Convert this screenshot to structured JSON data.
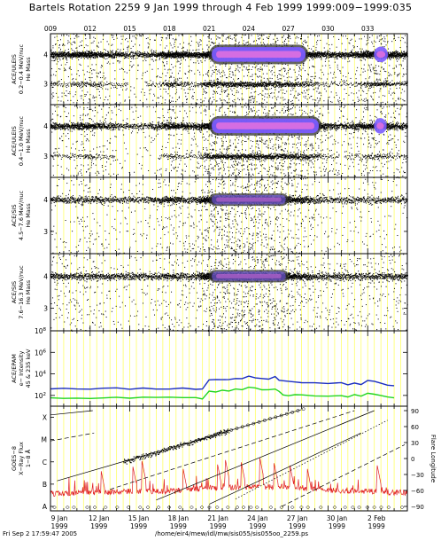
{
  "header": {
    "title": "Bartels Rotation 2259     9 Jan 1999 through 4 Feb 1999     1999:009−1999:035"
  },
  "footer": {
    "timestamp": "Fri Sep  2 17:59:47 2005",
    "path": "/home/eir4/mew/idl/mw/sis055/sis055oo_2259.ps"
  },
  "colors": {
    "low_energy_series": "#1c2fc0",
    "high_energy_series": "#22d622",
    "xray_flux": "#e02020",
    "dense_core": "#7a5cff",
    "dense_peak": "#e070e0",
    "grid": "#ffff66"
  },
  "chart_data": [
    {
      "panel": "ace-uleis-low",
      "type": "scatter",
      "ylabel": [
        "ACE/ULEIS",
        "0.2−0.4 MeV/nuc",
        "He Mass"
      ],
      "yticks": [
        "4",
        "3"
      ],
      "ylim": [
        2.3,
        4.7
      ],
      "top_axis_ticks": [
        "009",
        "012",
        "015",
        "018",
        "021",
        "024",
        "027",
        "030",
        "033"
      ],
      "dense_band": {
        "center": 4.0,
        "x_start_day": 21.0,
        "x_end_day": 28.5,
        "x_bubble_day": [
          33.6,
          34.4
        ]
      },
      "density_by_day": [
        [
          9,
          0.6
        ],
        [
          10,
          0.5
        ],
        [
          11,
          0.6
        ],
        [
          12,
          0.7
        ],
        [
          13,
          0.5
        ],
        [
          14,
          0.4
        ],
        [
          15,
          0.3
        ],
        [
          16,
          0.3
        ],
        [
          17,
          0.4
        ],
        [
          18,
          0.9
        ],
        [
          19,
          0.6
        ],
        [
          20,
          0.5
        ],
        [
          21,
          1.0
        ],
        [
          22,
          1.0
        ],
        [
          23,
          1.0
        ],
        [
          24,
          1.0
        ],
        [
          25,
          1.0
        ],
        [
          26,
          1.0
        ],
        [
          27,
          0.9
        ],
        [
          28,
          0.8
        ],
        [
          29,
          0.6
        ],
        [
          30,
          0.4
        ],
        [
          31,
          0.4
        ],
        [
          32,
          0.5
        ],
        [
          33,
          0.8
        ],
        [
          34,
          0.9
        ],
        [
          35,
          0.6
        ]
      ]
    },
    {
      "panel": "ace-uleis-high",
      "type": "scatter",
      "ylabel": [
        "ACE/ULEIS",
        "0.4−1.0 MeV/nuc",
        "He Mass"
      ],
      "yticks": [
        "4",
        "3"
      ],
      "ylim": [
        2.3,
        4.7
      ],
      "dense_band": {
        "center": 4.0,
        "x_start_day": 21.0,
        "x_end_day": 29.5,
        "x_bubble_day": [
          33.6,
          34.3
        ]
      },
      "density_by_day": [
        [
          9,
          0.4
        ],
        [
          10,
          0.4
        ],
        [
          11,
          0.5
        ],
        [
          12,
          0.6
        ],
        [
          13,
          0.4
        ],
        [
          14,
          0.3
        ],
        [
          15,
          0.2
        ],
        [
          16,
          0.2
        ],
        [
          17,
          0.3
        ],
        [
          18,
          0.6
        ],
        [
          19,
          0.5
        ],
        [
          20,
          0.4
        ],
        [
          21,
          1.0
        ],
        [
          22,
          1.0
        ],
        [
          23,
          1.0
        ],
        [
          24,
          1.0
        ],
        [
          25,
          1.0
        ],
        [
          26,
          1.0
        ],
        [
          27,
          1.0
        ],
        [
          28,
          0.9
        ],
        [
          29,
          0.8
        ],
        [
          30,
          0.4
        ],
        [
          31,
          0.3
        ],
        [
          32,
          0.4
        ],
        [
          33,
          0.6
        ],
        [
          34,
          0.7
        ],
        [
          35,
          0.4
        ]
      ]
    },
    {
      "panel": "ace-sis-low",
      "type": "scatter",
      "ylabel": [
        "ACE/SIS",
        "4.5−7.6 MeV/nuc",
        "He Mass"
      ],
      "yticks": [
        "4",
        "3"
      ],
      "ylim": [
        2.3,
        4.7
      ],
      "dense_band": {
        "center": 4.0,
        "x_start_day": 21.0,
        "x_end_day": 27.0
      },
      "density_by_day": [
        [
          9,
          0.25
        ],
        [
          10,
          0.25
        ],
        [
          11,
          0.3
        ],
        [
          12,
          0.3
        ],
        [
          13,
          0.25
        ],
        [
          14,
          0.2
        ],
        [
          15,
          0.2
        ],
        [
          16,
          0.2
        ],
        [
          17,
          0.3
        ],
        [
          18,
          0.5
        ],
        [
          19,
          0.3
        ],
        [
          20,
          0.3
        ],
        [
          21,
          1.0
        ],
        [
          22,
          1.0
        ],
        [
          23,
          1.0
        ],
        [
          24,
          1.0
        ],
        [
          25,
          0.9
        ],
        [
          26,
          0.8
        ],
        [
          27,
          0.6
        ],
        [
          28,
          0.5
        ],
        [
          29,
          0.3
        ],
        [
          30,
          0.2
        ],
        [
          31,
          0.2
        ],
        [
          32,
          0.2
        ],
        [
          33,
          0.2
        ],
        [
          34,
          0.2
        ],
        [
          35,
          0.2
        ]
      ]
    },
    {
      "panel": "ace-sis-high",
      "type": "scatter",
      "ylabel": [
        "ACE/SIS",
        "7.6−16.3 MeV/nuc",
        "He Mass"
      ],
      "yticks": [
        "4",
        "3"
      ],
      "ylim": [
        2.3,
        4.7
      ],
      "dense_band": {
        "center": 4.0,
        "x_start_day": 21.0,
        "x_end_day": 27.0
      },
      "density_by_day": [
        [
          9,
          0.3
        ],
        [
          10,
          0.3
        ],
        [
          11,
          0.3
        ],
        [
          12,
          0.3
        ],
        [
          13,
          0.3
        ],
        [
          14,
          0.25
        ],
        [
          15,
          0.25
        ],
        [
          16,
          0.25
        ],
        [
          17,
          0.3
        ],
        [
          18,
          0.35
        ],
        [
          19,
          0.3
        ],
        [
          20,
          0.3
        ],
        [
          21,
          1.0
        ],
        [
          22,
          1.0
        ],
        [
          23,
          1.0
        ],
        [
          24,
          1.0
        ],
        [
          25,
          0.95
        ],
        [
          26,
          0.9
        ],
        [
          27,
          0.7
        ],
        [
          28,
          0.5
        ],
        [
          29,
          0.3
        ],
        [
          30,
          0.3
        ],
        [
          31,
          0.3
        ],
        [
          32,
          0.3
        ],
        [
          33,
          0.3
        ],
        [
          34,
          0.3
        ],
        [
          35,
          0.3
        ]
      ]
    },
    {
      "panel": "ace-epam",
      "type": "line",
      "ylabel": [
        "ACE/EPAM",
        "e− Intensity",
        "45 & 235 keV"
      ],
      "yticks": [
        "10^8",
        "10^6",
        "10^4",
        "10^2"
      ],
      "log_y": true,
      "ylim": [
        10,
        100000000
      ],
      "series": [
        {
          "color_key": "low_energy_series",
          "x": [
            9,
            10,
            11,
            12,
            13,
            14,
            15,
            16,
            17,
            18,
            19,
            20,
            20.5,
            21,
            21.5,
            22,
            22.5,
            23,
            23.5,
            24,
            24.5,
            25,
            25.5,
            26,
            26.3,
            26.6,
            27,
            27.5,
            28,
            29,
            30,
            31,
            31.5,
            32,
            32.5,
            33,
            33.5,
            34,
            34.5,
            35
          ],
          "y": [
            400,
            420,
            430,
            430,
            430,
            430,
            430,
            430,
            420,
            440,
            430,
            420,
            400,
            2500,
            2800,
            3000,
            2600,
            4000,
            3200,
            7000,
            4500,
            4000,
            3000,
            5500,
            3000,
            2000,
            1800,
            1800,
            1600,
            1500,
            1300,
            1400,
            1100,
            1500,
            1100,
            2500,
            2200,
            1600,
            900,
            800
          ]
        },
        {
          "color_key": "high_energy_series",
          "x": [
            9,
            10,
            11,
            12,
            13,
            14,
            15,
            16,
            17,
            18,
            19,
            20,
            20.5,
            21,
            21.5,
            22,
            22.5,
            23,
            23.5,
            24,
            24.5,
            25,
            25.5,
            26,
            26.3,
            26.6,
            27,
            27.5,
            28,
            29,
            30,
            31,
            31.5,
            32,
            32.5,
            33,
            33.5,
            34,
            34.5,
            35
          ],
          "y": [
            60,
            60,
            62,
            62,
            62,
            60,
            60,
            60,
            60,
            62,
            60,
            58,
            55,
            250,
            240,
            280,
            240,
            380,
            300,
            600,
            420,
            380,
            300,
            460,
            200,
            120,
            110,
            115,
            100,
            100,
            90,
            100,
            80,
            110,
            80,
            140,
            130,
            100,
            70,
            60
          ]
        }
      ]
    },
    {
      "panel": "goes-xray",
      "type": "line",
      "ylabel": [
        "GOES−8",
        "X−Ray Flux",
        "1−8 Å"
      ],
      "yticks": [
        "X",
        "M",
        "C",
        "B",
        "A"
      ],
      "y2label": "Flare Longitude",
      "y2ticks": [
        "90",
        "60",
        "30",
        "0",
        "−30",
        "−60",
        "−90"
      ],
      "xticks": [
        "9 Jan 1999",
        "12 Jan 1999",
        "15 Jan 1999",
        "18 Jan 1999",
        "21 Jan 1999",
        "24 Jan 1999",
        "27 Jan 1999",
        "30 Jan 1999",
        "2 Feb 1999"
      ],
      "xlim_day": [
        9,
        36
      ],
      "flux_level": {
        "x": [
          9,
          12,
          15,
          18,
          21,
          24,
          27,
          30,
          33,
          35
        ],
        "y": [
          0.45,
          0.5,
          0.55,
          0.55,
          0.7,
          0.75,
          0.75,
          0.6,
          0.55,
          0.5
        ]
      },
      "flares": [
        {
          "x": 12.8,
          "y": 1.7
        },
        {
          "x": 15.2,
          "y": 1.9
        },
        {
          "x": 15.9,
          "y": 2.1
        },
        {
          "x": 19.0,
          "y": 1.8
        },
        {
          "x": 21.6,
          "y": 2.0
        },
        {
          "x": 22.2,
          "y": 2.2
        },
        {
          "x": 23.4,
          "y": 2.1
        },
        {
          "x": 24.8,
          "y": 2.3
        },
        {
          "x": 25.9,
          "y": 2.0
        },
        {
          "x": 27.1,
          "y": 1.9
        },
        {
          "x": 28.4,
          "y": 1.8
        },
        {
          "x": 33.7,
          "y": 1.9
        }
      ],
      "rotation_lines": [
        {
          "style": "solid",
          "x0": 9.0,
          "y0": 82,
          "x1": 12.2,
          "y1": 90
        },
        {
          "style": "dashed",
          "x0": 9.0,
          "y0": 33,
          "x1": 12.3,
          "y1": 48
        },
        {
          "style": "solid",
          "x0": 9.5,
          "y0": -42,
          "x1": 28.0,
          "y1": 92
        },
        {
          "style": "dashed",
          "x0": 13.5,
          "y0": -58,
          "x1": 32.0,
          "y1": 90
        },
        {
          "style": "solid",
          "x0": 17.0,
          "y0": -78,
          "x1": 33.5,
          "y1": 90
        },
        {
          "style": "solid",
          "x0": 21.0,
          "y0": -86,
          "x1": 32.5,
          "y1": 48
        },
        {
          "style": "dotted",
          "x0": 23.0,
          "y0": -76,
          "x1": 34.5,
          "y1": 72
        },
        {
          "style": "dashed",
          "x0": 26.5,
          "y0": -90,
          "x1": 35.8,
          "y1": 26
        }
      ]
    }
  ]
}
